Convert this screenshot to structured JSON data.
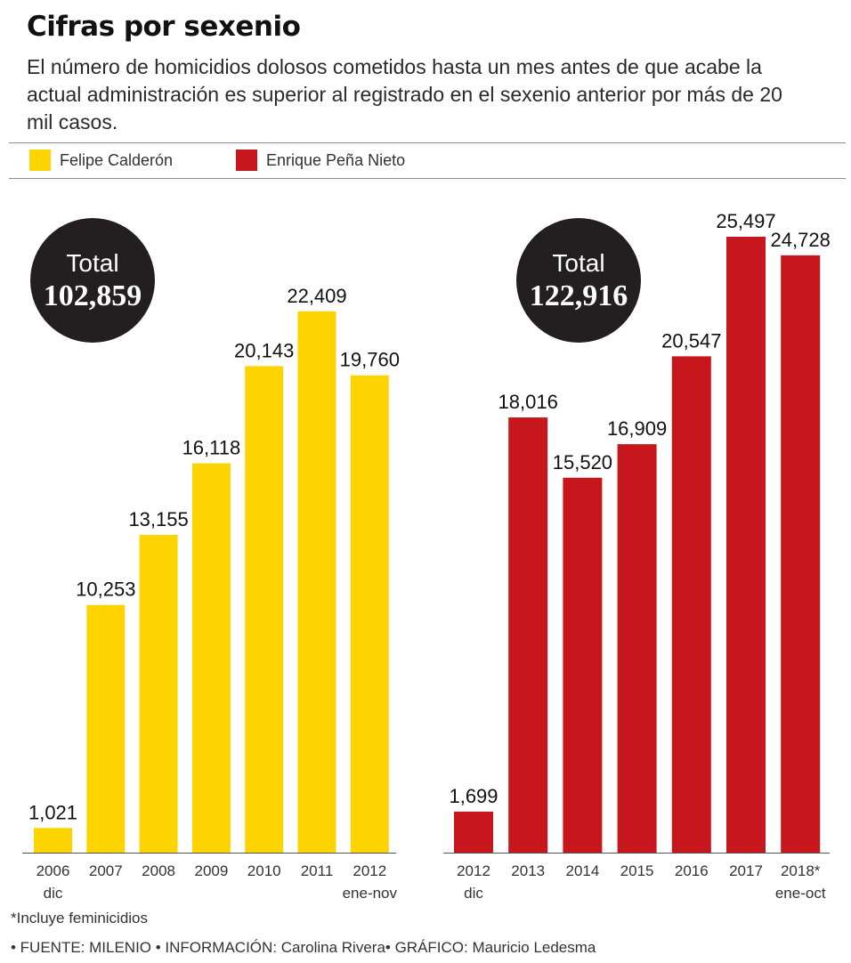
{
  "header": {
    "title": "Cifras por sexenio",
    "subtitle": "El número de homicidios dolosos cometidos hasta un mes antes de que acabe la actual administración es superior al registrado en el sexenio anterior por más de 20 mil casos."
  },
  "legend": [
    {
      "label": "Felipe Calderón",
      "color": "#fdd400"
    },
    {
      "label": "Enrique Peña Nieto",
      "color": "#c8161d"
    }
  ],
  "chart_data": [
    {
      "type": "bar",
      "series": [
        {
          "name": "Felipe Calderón",
          "values": [
            1021,
            10253,
            13155,
            16118,
            20143,
            22409,
            19760
          ]
        }
      ],
      "categories": [
        "2006 dic",
        "2007",
        "2008",
        "2009",
        "2010",
        "2011",
        "2012 ene-nov"
      ],
      "category_lines": [
        [
          "2006",
          "dic"
        ],
        [
          "2007"
        ],
        [
          "2008"
        ],
        [
          "2009"
        ],
        [
          "2010"
        ],
        [
          "2011"
        ],
        [
          "2012",
          "ene-nov"
        ]
      ],
      "value_labels": [
        "1,021",
        "10,253",
        "13,155",
        "16,118",
        "20,143",
        "22,409",
        "19,760"
      ],
      "color": "#fdd400",
      "total_label": "Total",
      "total_value": "102,859",
      "ylim": [
        0,
        25497
      ]
    },
    {
      "type": "bar",
      "series": [
        {
          "name": "Enrique Peña Nieto",
          "values": [
            1699,
            18016,
            15520,
            16909,
            20547,
            25497,
            24728
          ]
        }
      ],
      "categories": [
        "2012 dic",
        "2013",
        "2014",
        "2015",
        "2016",
        "2017",
        "2018* ene-oct"
      ],
      "category_lines": [
        [
          "2012",
          "dic"
        ],
        [
          "2013"
        ],
        [
          "2014"
        ],
        [
          "2015"
        ],
        [
          "2016"
        ],
        [
          "2017"
        ],
        [
          "2018*",
          "ene-oct"
        ]
      ],
      "value_labels": [
        "1,699",
        "18,016",
        "15,520",
        "16,909",
        "20,547",
        "25,497",
        "24,728"
      ],
      "color": "#c8161d",
      "total_label": "Total",
      "total_value": "122,916",
      "ylim": [
        0,
        25497
      ]
    }
  ],
  "footnote": "*Incluye feminicidios",
  "source": "• FUENTE: MILENIO • INFORMACIÓN: Carolina Rivera• GRÁFICO: Mauricio Ledesma"
}
